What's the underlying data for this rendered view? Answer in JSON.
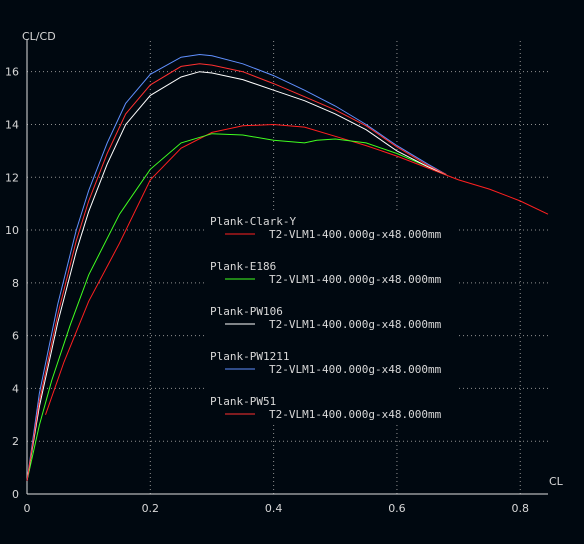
{
  "chart_data": {
    "type": "line",
    "xlabel": "CL",
    "ylabel": "CL/CD",
    "xlim": [
      0,
      0.845
    ],
    "ylim": [
      0,
      17.2
    ],
    "xticks": [
      0,
      0.2,
      0.4,
      0.6,
      0.8
    ],
    "yticks": [
      0,
      2,
      4,
      6,
      8,
      10,
      12,
      14,
      16
    ],
    "xtick_labels": [
      "0",
      "0.2",
      "0.4",
      "0.6",
      "0.8"
    ],
    "ytick_labels": [
      "0",
      "2",
      "4",
      "6",
      "8",
      "10",
      "12",
      "14",
      "16"
    ],
    "grid": true,
    "legend_position": "center",
    "series": [
      {
        "name": "Plank-Clark-Y",
        "description": "T2-VLM1-400.000g-x48.000mm",
        "color": "#ff2020",
        "x": [
          0.03,
          0.06,
          0.1,
          0.15,
          0.2,
          0.25,
          0.3,
          0.35,
          0.4,
          0.45,
          0.5,
          0.55,
          0.6,
          0.65,
          0.7,
          0.75,
          0.8,
          0.845
        ],
        "y": [
          3.0,
          5.0,
          7.3,
          9.5,
          11.9,
          13.1,
          13.7,
          13.95,
          14.0,
          13.9,
          13.55,
          13.2,
          12.8,
          12.35,
          11.9,
          11.55,
          11.1,
          10.6
        ]
      },
      {
        "name": "Plank-E186",
        "description": "T2-VLM1-400.000g-x48.000mm",
        "color": "#40ff20",
        "x": [
          0.0,
          0.02,
          0.04,
          0.07,
          0.1,
          0.15,
          0.2,
          0.25,
          0.3,
          0.35,
          0.4,
          0.45,
          0.47,
          0.5,
          0.55,
          0.6,
          0.65,
          0.68
        ],
        "y": [
          0.5,
          2.6,
          4.3,
          6.4,
          8.3,
          10.6,
          12.3,
          13.3,
          13.65,
          13.6,
          13.4,
          13.3,
          13.4,
          13.45,
          13.3,
          12.9,
          12.4,
          12.1
        ]
      },
      {
        "name": "Plank-PW106",
        "description": "T2-VLM1-400.000g-x48.000mm",
        "color": "#ffffff",
        "x": [
          0.0,
          0.02,
          0.05,
          0.08,
          0.1,
          0.13,
          0.16,
          0.2,
          0.25,
          0.28,
          0.3,
          0.35,
          0.4,
          0.45,
          0.5,
          0.55,
          0.6,
          0.65,
          0.68
        ],
        "y": [
          0.5,
          3.3,
          6.5,
          9.2,
          10.7,
          12.5,
          14.0,
          15.1,
          15.8,
          16.0,
          15.95,
          15.7,
          15.3,
          14.9,
          14.4,
          13.8,
          13.0,
          12.4,
          12.1
        ]
      },
      {
        "name": "Plank-PW1211",
        "description": "T2-VLM1-400.000g-x48.000mm",
        "color": "#6090ff",
        "x": [
          0.0,
          0.02,
          0.05,
          0.08,
          0.1,
          0.13,
          0.16,
          0.2,
          0.25,
          0.28,
          0.3,
          0.35,
          0.4,
          0.45,
          0.5,
          0.55,
          0.6,
          0.65,
          0.68
        ],
        "y": [
          0.5,
          3.8,
          7.2,
          10.0,
          11.5,
          13.3,
          14.8,
          15.9,
          16.55,
          16.65,
          16.6,
          16.3,
          15.85,
          15.3,
          14.7,
          14.0,
          13.2,
          12.5,
          12.1
        ]
      },
      {
        "name": "Plank-PW51",
        "description": "T2-VLM1-400.000g-x48.000mm",
        "color": "#ff3030",
        "x": [
          0.0,
          0.02,
          0.05,
          0.08,
          0.1,
          0.13,
          0.16,
          0.2,
          0.25,
          0.28,
          0.3,
          0.35,
          0.4,
          0.45,
          0.5,
          0.55,
          0.6,
          0.65,
          0.68
        ],
        "y": [
          0.5,
          3.5,
          6.8,
          9.6,
          11.1,
          12.9,
          14.4,
          15.5,
          16.2,
          16.3,
          16.25,
          16.0,
          15.55,
          15.05,
          14.55,
          13.95,
          13.15,
          12.45,
          12.1
        ]
      }
    ]
  }
}
